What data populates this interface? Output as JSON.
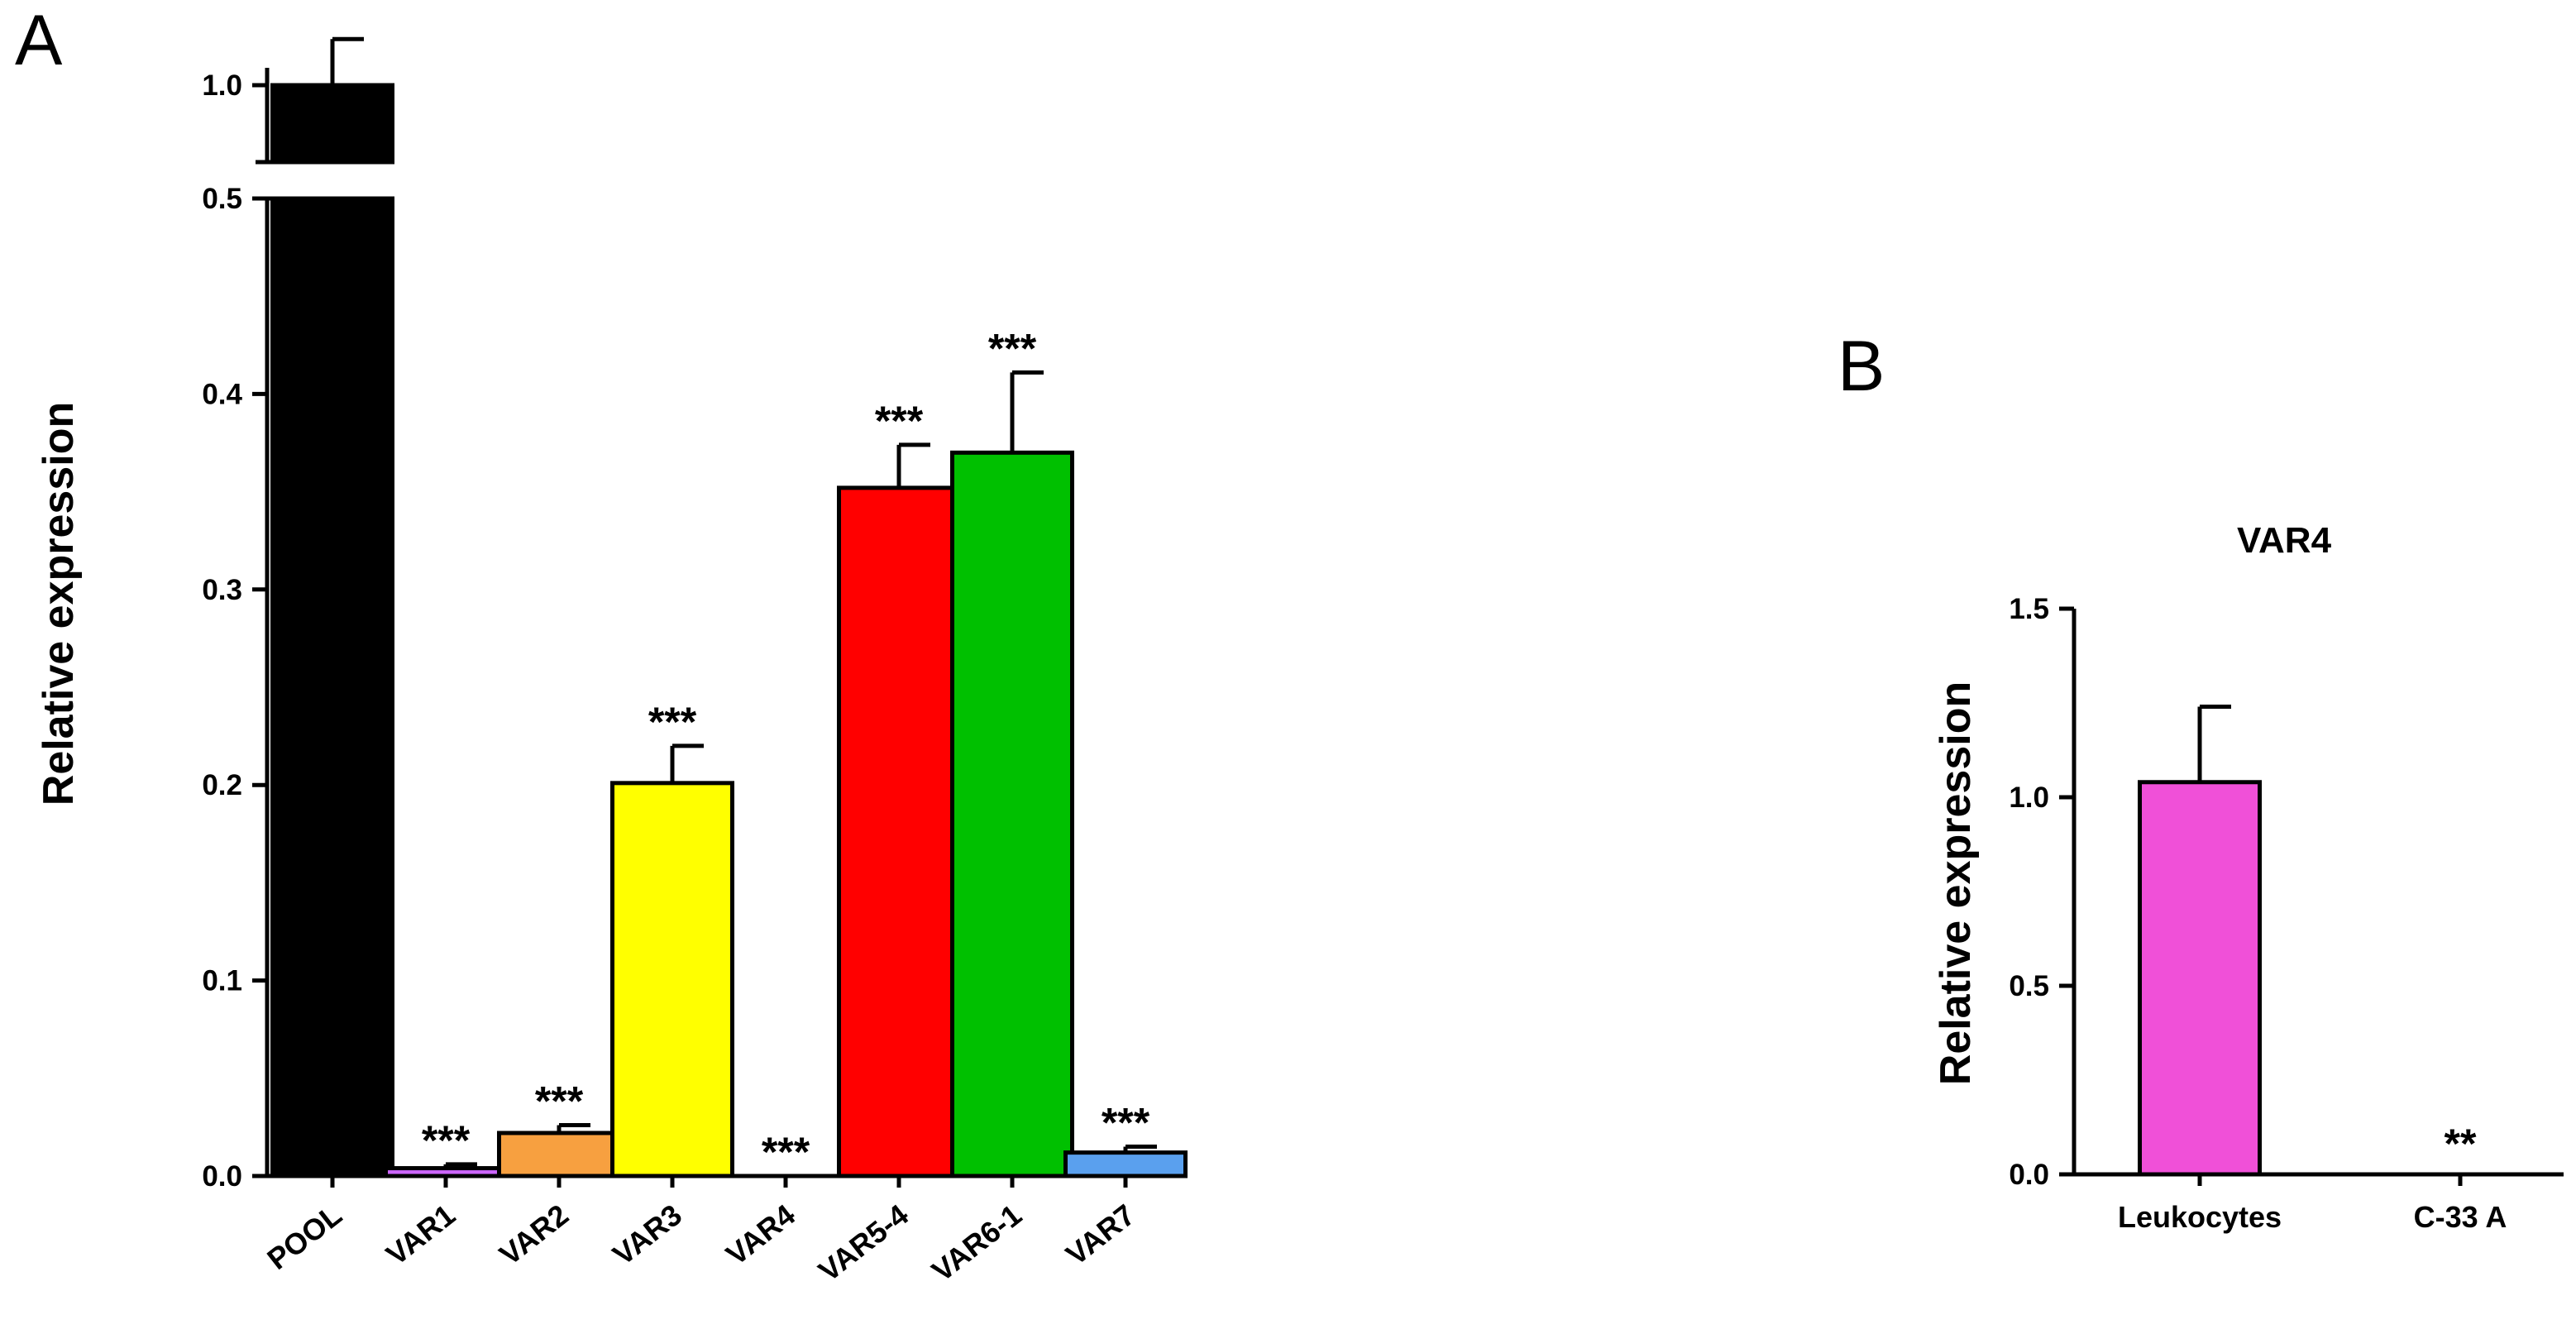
{
  "chart_data": [
    {
      "panel": "A",
      "type": "bar",
      "title": "",
      "xlabel": "",
      "ylabel": "Relative expression",
      "y_axis_break": [
        0.5,
        0.9
      ],
      "yticks": [
        "0.0",
        "0.1",
        "0.2",
        "0.3",
        "0.4",
        "0.5",
        "1.0"
      ],
      "ylim": [
        0,
        1.05
      ],
      "categories": [
        "POOL",
        "VAR1",
        "VAR2",
        "VAR3",
        "VAR4",
        "VAR5-4",
        "VAR6-1",
        "VAR7"
      ],
      "values": [
        1.0,
        0.004,
        0.022,
        0.201,
        0.0,
        0.352,
        0.37,
        0.012
      ],
      "errors": [
        0.06,
        0.002,
        0.004,
        0.019,
        0.0,
        0.022,
        0.041,
        0.003
      ],
      "colors": [
        "#000000",
        "#cc66ff",
        "#f7a040",
        "#ffff00",
        "#ffffff",
        "#ff0000",
        "#00c000",
        "#5aa0ee"
      ],
      "significance": [
        "",
        "***",
        "***",
        "***",
        "***",
        "***",
        "***",
        "***"
      ]
    },
    {
      "panel": "B",
      "type": "bar",
      "title": "VAR4",
      "xlabel": "",
      "ylabel": "Relative expression",
      "yticks": [
        "0.0",
        "0.5",
        "1.0",
        "1.5"
      ],
      "ylim": [
        0,
        1.5
      ],
      "categories": [
        "Leukocytes",
        "C-33 A"
      ],
      "values": [
        1.04,
        0.0
      ],
      "errors": [
        0.2,
        0.0
      ],
      "colors": [
        "#f050d8",
        "#ffffff"
      ],
      "significance": [
        "",
        "**"
      ]
    }
  ]
}
